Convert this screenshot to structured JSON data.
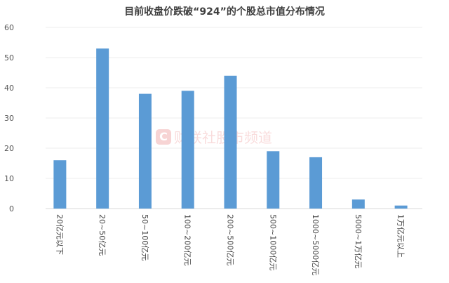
{
  "chart_data": {
    "type": "bar",
    "title": "目前收盘价跌破“924”的个股总市值分布情况",
    "categories": [
      "20亿元以下",
      "20~50亿元",
      "50~100亿元",
      "100~200亿元",
      "200~500亿元",
      "500~1000亿元",
      "1000~5000亿元",
      "5000~1万亿元",
      "1万亿元以上"
    ],
    "values": [
      16,
      53,
      38,
      39,
      44,
      19,
      17,
      3,
      1
    ],
    "ylim": [
      0,
      60
    ],
    "yticks": [
      0,
      10,
      20,
      30,
      40,
      50,
      60
    ],
    "grid": true,
    "bar_color": "#5b9bd5",
    "xlabel": "",
    "ylabel": ""
  },
  "watermark": {
    "logo": "C",
    "text": "财联社股市频道"
  }
}
